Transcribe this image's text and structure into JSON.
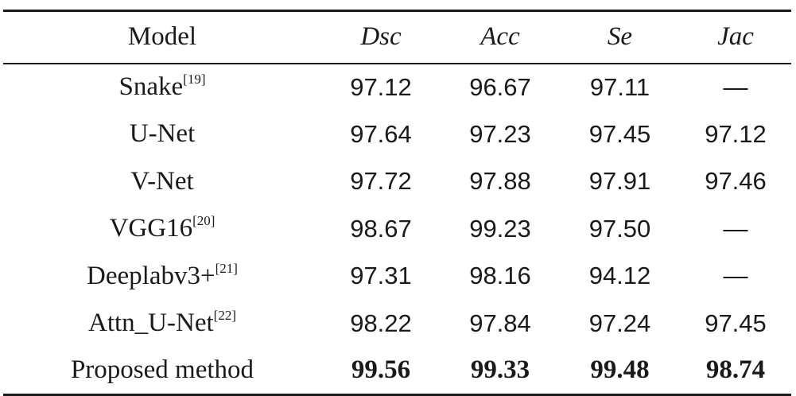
{
  "table": {
    "headers": {
      "model": "Model",
      "dsc": "Dsc",
      "acc": "Acc",
      "se": "Se",
      "jac": "Jac"
    },
    "rows": [
      {
        "model": "Snake",
        "ref": "[19]",
        "dsc": "97.12",
        "acc": "96.67",
        "se": "97.11",
        "jac": "—"
      },
      {
        "model": "U-Net",
        "ref": "",
        "dsc": "97.64",
        "acc": "97.23",
        "se": "97.45",
        "jac": "97.12"
      },
      {
        "model": "V-Net",
        "ref": "",
        "dsc": "97.72",
        "acc": "97.88",
        "se": "97.91",
        "jac": "97.46"
      },
      {
        "model": "VGG16",
        "ref": "[20]",
        "dsc": "98.67",
        "acc": "99.23",
        "se": "97.50",
        "jac": "—"
      },
      {
        "model": "Deeplabv3+",
        "ref": "[21]",
        "dsc": "97.31",
        "acc": "98.16",
        "se": "94.12",
        "jac": "—"
      },
      {
        "model": "Attn_U-Net",
        "ref": "[22]",
        "dsc": "98.22",
        "acc": "97.84",
        "se": "97.24",
        "jac": "97.45"
      },
      {
        "model": "Proposed method",
        "ref": "",
        "dsc": "99.56",
        "acc": "99.33",
        "se": "99.48",
        "jac": "98.74"
      }
    ]
  }
}
